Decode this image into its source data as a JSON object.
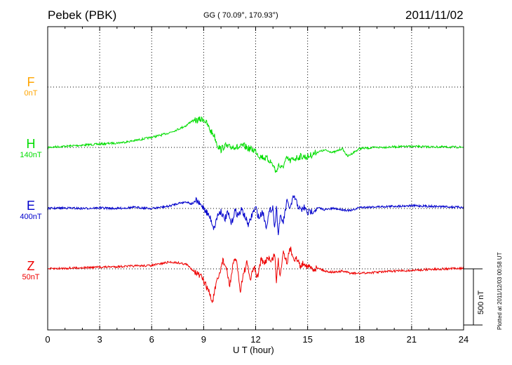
{
  "header": {
    "station": "Pebek (PBK)",
    "coords": "GG ( 70.09°, 170.93°)",
    "date": "2011/11/02"
  },
  "channels": [
    {
      "letter": "F",
      "scale": "0nT",
      "color": "#ffa500"
    },
    {
      "letter": "H",
      "scale": "140nT",
      "color": "#00dd00"
    },
    {
      "letter": "E",
      "scale": "400nT",
      "color": "#0000cc"
    },
    {
      "letter": "Z",
      "scale": "50nT",
      "color": "#ee0000"
    }
  ],
  "xaxis": {
    "label": "U T (hour)"
  },
  "scale_bar": {
    "label": "500 nT"
  },
  "plotted_note": "Plotted at 2011/12/03 00:58 UT",
  "chart_data": {
    "type": "line",
    "xlabel": "U T (hour)",
    "xlim": [
      0,
      24
    ],
    "xticks": [
      0,
      3,
      6,
      9,
      12,
      15,
      18,
      21,
      24
    ],
    "grid": true,
    "series": [
      {
        "name": "H",
        "color": "#00dd00",
        "x": [
          0,
          1,
          2,
          3,
          4,
          4.5,
          5,
          5.5,
          6,
          6.5,
          7,
          7.5,
          8,
          8.3,
          8.6,
          9,
          9.2,
          9.4,
          9.6,
          9.8,
          10,
          10.2,
          10.5,
          10.8,
          11,
          11.3,
          11.6,
          12,
          12.2,
          12.5,
          12.8,
          13,
          13.1,
          13.2,
          13.3,
          13.5,
          13.8,
          14,
          14.3,
          14.6,
          15,
          15.3,
          15.6,
          16,
          16.5,
          17,
          17.3,
          17.5,
          17.7,
          18,
          18.5,
          19,
          20,
          21,
          22,
          23,
          24
        ],
        "y": [
          0,
          10,
          20,
          30,
          40,
          48,
          60,
          75,
          90,
          108,
          130,
          160,
          195,
          235,
          240,
          255,
          205,
          145,
          110,
          20,
          -20,
          15,
          0,
          10,
          -5,
          15,
          -10,
          -30,
          -75,
          -90,
          -115,
          -155,
          -190,
          -230,
          -150,
          -190,
          -100,
          -120,
          -95,
          -80,
          -85,
          -60,
          -40,
          -25,
          -45,
          -10,
          -80,
          -60,
          -40,
          -10,
          -5,
          0,
          5,
          8,
          5,
          3,
          2
        ]
      },
      {
        "name": "E",
        "color": "#0000cc",
        "x": [
          0,
          1,
          2,
          3,
          4,
          5,
          6,
          6.5,
          7,
          7.5,
          8,
          8.3,
          8.6,
          8.8,
          9,
          9.2,
          9.4,
          9.6,
          9.8,
          10,
          10.2,
          10.4,
          10.6,
          10.8,
          11,
          11.2,
          11.4,
          11.6,
          11.8,
          12,
          12.2,
          12.4,
          12.6,
          12.8,
          13,
          13.1,
          13.2,
          13.3,
          13.4,
          13.6,
          13.8,
          14,
          14.2,
          14.4,
          14.6,
          14.8,
          15,
          15.3,
          15.6,
          16,
          16.5,
          17,
          17.5,
          18,
          19,
          20,
          21,
          22,
          23,
          24
        ],
        "y": [
          0,
          5,
          0,
          5,
          0,
          10,
          0,
          10,
          20,
          45,
          60,
          40,
          70,
          30,
          10,
          -40,
          -90,
          -180,
          -60,
          -20,
          -100,
          -40,
          -140,
          -20,
          -60,
          -10,
          -80,
          -150,
          -50,
          10,
          -90,
          -20,
          -160,
          -30,
          20,
          -200,
          40,
          -250,
          -80,
          -120,
          60,
          0,
          110,
          40,
          -20,
          10,
          -40,
          -20,
          5,
          -10,
          0,
          -10,
          -20,
          10,
          15,
          20,
          25,
          20,
          15,
          10
        ]
      },
      {
        "name": "Z",
        "color": "#ee0000",
        "x": [
          0,
          1,
          2,
          3,
          4,
          5,
          6,
          6.5,
          7,
          7.5,
          8,
          8.3,
          8.6,
          8.9,
          9.1,
          9.3,
          9.5,
          9.7,
          9.9,
          10.1,
          10.3,
          10.5,
          10.7,
          10.9,
          11.1,
          11.3,
          11.5,
          11.7,
          11.9,
          12.1,
          12.3,
          12.5,
          12.7,
          12.9,
          13.1,
          13.2,
          13.3,
          13.4,
          13.6,
          13.8,
          14,
          14.2,
          14.4,
          14.6,
          14.8,
          15,
          15.3,
          15.6,
          16,
          16.5,
          17,
          17.5,
          18,
          19,
          20,
          21,
          22,
          23,
          24
        ],
        "y": [
          0,
          5,
          10,
          15,
          20,
          25,
          30,
          45,
          60,
          55,
          40,
          0,
          -40,
          -80,
          -140,
          -200,
          -300,
          -150,
          -60,
          80,
          10,
          -150,
          40,
          90,
          -200,
          -40,
          50,
          -100,
          20,
          -80,
          80,
          40,
          110,
          60,
          140,
          -120,
          90,
          -60,
          160,
          60,
          180,
          100,
          80,
          20,
          60,
          20,
          0,
          10,
          -20,
          -30,
          -20,
          -40,
          -40,
          -30,
          -20,
          -15,
          -5,
          0,
          5
        ]
      }
    ]
  }
}
